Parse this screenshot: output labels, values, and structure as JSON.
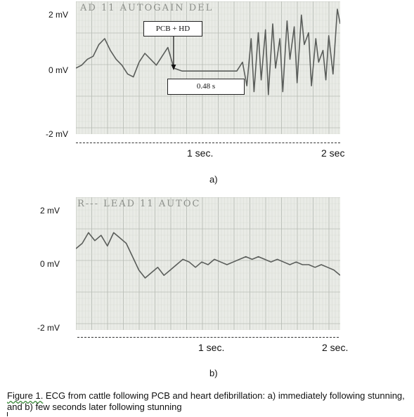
{
  "colors": {
    "paper": "#e9ebe6",
    "grid_major": "#b8bdb6",
    "grid_minor": "#d6d9d3",
    "trace": "#5a5d5a",
    "print_text": "#8c8f8a"
  },
  "chart_data": [
    {
      "type": "line",
      "panel_label": "a)",
      "print_header": "AD  11      AUTOGAIN      DEL",
      "yticks": [
        "2 mV",
        "0 mV",
        "-2 mV"
      ],
      "ylim": [
        -2,
        2
      ],
      "xticks": [
        "1 sec.",
        "2 sec"
      ],
      "xtick_values": [
        1,
        2
      ],
      "xlim": [
        0.26,
        2.1
      ],
      "annotations": {
        "event_label": "PCB + HD",
        "event_time": 0.94,
        "duration_label": "0.48 s",
        "duration_start": 0.94,
        "duration_end": 1.42
      },
      "series": [
        {
          "x": [
            0.26,
            0.3,
            0.34,
            0.38,
            0.42,
            0.46,
            0.5,
            0.54,
            0.58,
            0.62,
            0.66,
            0.7,
            0.74,
            0.78,
            0.82,
            0.86,
            0.9,
            0.93,
            0.94,
            1.0,
            1.1,
            1.2,
            1.3,
            1.38,
            1.42,
            1.45,
            1.48,
            1.5,
            1.53,
            1.55,
            1.58,
            1.6,
            1.63,
            1.65,
            1.68,
            1.7,
            1.73,
            1.75,
            1.78,
            1.8,
            1.83,
            1.85,
            1.88,
            1.9,
            1.93,
            1.95,
            1.98,
            2.0,
            2.02,
            2.05,
            2.08,
            2.1
          ],
          "y": [
            0.0,
            0.1,
            0.3,
            0.4,
            0.8,
            1.0,
            0.6,
            0.3,
            0.1,
            -0.2,
            -0.3,
            0.2,
            0.5,
            0.3,
            0.1,
            0.4,
            0.7,
            0.2,
            0.0,
            -0.1,
            -0.1,
            -0.1,
            -0.1,
            -0.1,
            0.2,
            -0.6,
            1.0,
            -0.8,
            1.2,
            -0.4,
            1.3,
            -0.9,
            1.5,
            0.0,
            1.0,
            -0.8,
            1.6,
            0.3,
            1.4,
            -0.5,
            1.8,
            0.8,
            1.2,
            -0.6,
            1.0,
            0.2,
            0.6,
            -0.4,
            1.1,
            -0.2,
            2.0,
            1.5
          ]
        }
      ]
    },
    {
      "type": "line",
      "panel_label": "b)",
      "print_header": "R---       LEAD   11       AUTOC",
      "yticks": [
        "2 mV",
        "0 mV",
        "-2 mV"
      ],
      "ylim": [
        -2,
        2
      ],
      "xticks": [
        "1 sec.",
        "2 sec."
      ],
      "xtick_values": [
        1,
        2
      ],
      "xlim": [
        0.0,
        2.1
      ],
      "series": [
        {
          "x": [
            0.0,
            0.05,
            0.1,
            0.15,
            0.2,
            0.25,
            0.3,
            0.35,
            0.4,
            0.45,
            0.5,
            0.55,
            0.6,
            0.65,
            0.7,
            0.75,
            0.8,
            0.85,
            0.9,
            0.95,
            1.0,
            1.05,
            1.1,
            1.15,
            1.2,
            1.25,
            1.3,
            1.35,
            1.4,
            1.45,
            1.5,
            1.55,
            1.6,
            1.65,
            1.7,
            1.75,
            1.8,
            1.85,
            1.9,
            1.95,
            2.0,
            2.05,
            2.1
          ],
          "y": [
            0.6,
            0.8,
            1.2,
            0.9,
            1.1,
            0.7,
            1.2,
            1.0,
            0.8,
            0.3,
            -0.2,
            -0.5,
            -0.3,
            -0.1,
            -0.4,
            -0.2,
            0.0,
            0.2,
            0.1,
            -0.1,
            0.1,
            0.0,
            0.2,
            0.1,
            0.0,
            0.1,
            0.2,
            0.3,
            0.2,
            0.3,
            0.2,
            0.1,
            0.2,
            0.1,
            0.0,
            0.1,
            0.0,
            0.0,
            -0.1,
            0.0,
            -0.1,
            -0.2,
            -0.4
          ]
        }
      ]
    }
  ],
  "caption": {
    "figure_label": "Figure 1.",
    "text": " ECG from cattle following PCB and heart defibrillation: a) immediately following stunning, and b) few seconds later following stunning"
  }
}
